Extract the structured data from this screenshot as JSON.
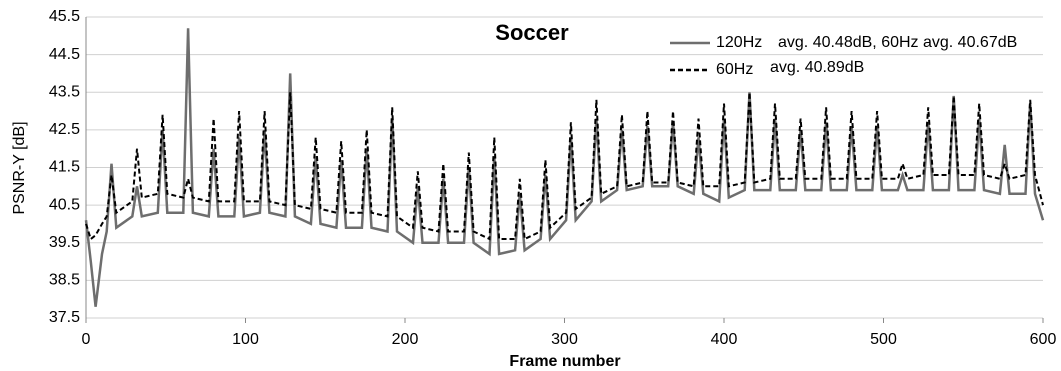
{
  "chart_data": {
    "type": "line",
    "title": "Soccer",
    "xlabel": "Frame number",
    "ylabel": "PSNR-Y [dB]",
    "annotations": [
      "avg. 40.48dB, 60Hz avg. 40.67dB",
      "avg. 40.89dB"
    ],
    "x": [
      0,
      3,
      6,
      10,
      13,
      16,
      19,
      29,
      32,
      35,
      45,
      48,
      51,
      61,
      64,
      67,
      77,
      80,
      83,
      93,
      96,
      99,
      109,
      112,
      115,
      125,
      128,
      131,
      141,
      144,
      147,
      157,
      160,
      163,
      173,
      176,
      179,
      189,
      192,
      195,
      205,
      208,
      211,
      221,
      224,
      227,
      237,
      240,
      243,
      253,
      256,
      259,
      269,
      272,
      275,
      285,
      288,
      291,
      301,
      304,
      307,
      317,
      320,
      323,
      333,
      336,
      339,
      349,
      352,
      355,
      365,
      368,
      371,
      381,
      384,
      387,
      397,
      400,
      403,
      413,
      416,
      419,
      429,
      432,
      435,
      445,
      448,
      451,
      461,
      464,
      467,
      477,
      480,
      483,
      493,
      496,
      499,
      509,
      512,
      515,
      525,
      528,
      531,
      541,
      544,
      547,
      557,
      560,
      563,
      573,
      576,
      579,
      589,
      592,
      595,
      600
    ],
    "series": [
      {
        "name": "120Hz",
        "color": "#6e6e6e",
        "dash": "solid",
        "values": [
          40.1,
          39.0,
          37.8,
          39.2,
          39.8,
          41.6,
          39.9,
          40.2,
          41.0,
          40.2,
          40.3,
          42.5,
          40.3,
          40.3,
          45.2,
          40.3,
          40.2,
          42.0,
          40.2,
          40.2,
          42.3,
          40.2,
          40.3,
          42.5,
          40.3,
          40.2,
          44.0,
          40.2,
          40.0,
          41.8,
          40.0,
          39.9,
          41.7,
          39.9,
          39.9,
          42.0,
          39.9,
          39.8,
          42.8,
          39.8,
          39.5,
          41.0,
          39.5,
          39.5,
          41.2,
          39.5,
          39.5,
          41.5,
          39.5,
          39.2,
          41.8,
          39.2,
          39.3,
          40.8,
          39.3,
          39.6,
          41.3,
          39.6,
          40.1,
          42.3,
          40.1,
          40.6,
          42.8,
          40.6,
          40.9,
          42.5,
          40.9,
          41.0,
          42.6,
          41.0,
          41.0,
          42.7,
          41.0,
          40.8,
          42.3,
          40.8,
          40.6,
          42.8,
          40.7,
          40.9,
          43.5,
          40.9,
          40.9,
          42.8,
          40.9,
          40.9,
          42.5,
          40.9,
          40.9,
          42.7,
          40.9,
          40.9,
          42.6,
          40.9,
          40.9,
          42.6,
          40.9,
          40.9,
          41.3,
          40.9,
          40.9,
          42.7,
          40.9,
          40.9,
          43.4,
          40.9,
          40.9,
          42.8,
          40.9,
          40.8,
          42.1,
          40.8,
          40.8,
          43.2,
          40.8,
          40.1
        ]
      },
      {
        "name": "60Hz",
        "color": "#000000",
        "dash": "dashed",
        "values": [
          40.0,
          39.6,
          39.7,
          40.0,
          40.2,
          41.3,
          40.3,
          40.6,
          42.0,
          40.7,
          40.8,
          42.9,
          40.8,
          40.7,
          41.2,
          40.7,
          40.6,
          42.8,
          40.6,
          40.6,
          43.0,
          40.6,
          40.6,
          43.0,
          40.6,
          40.5,
          43.5,
          40.5,
          40.4,
          42.3,
          40.4,
          40.3,
          42.2,
          40.3,
          40.3,
          42.5,
          40.3,
          40.2,
          43.1,
          40.2,
          39.9,
          41.4,
          39.9,
          39.8,
          41.6,
          39.8,
          39.8,
          41.9,
          39.8,
          39.6,
          42.3,
          39.6,
          39.6,
          41.2,
          39.6,
          39.8,
          41.7,
          39.9,
          40.3,
          42.7,
          40.4,
          40.7,
          43.3,
          40.8,
          41.0,
          42.9,
          41.0,
          41.1,
          43.0,
          41.1,
          41.1,
          43.0,
          41.1,
          41.0,
          42.8,
          41.0,
          41.0,
          43.2,
          41.0,
          41.1,
          43.5,
          41.1,
          41.2,
          43.2,
          41.2,
          41.2,
          42.8,
          41.2,
          41.2,
          43.1,
          41.2,
          41.2,
          43.0,
          41.2,
          41.2,
          43.0,
          41.2,
          41.2,
          41.6,
          41.2,
          41.3,
          43.1,
          41.3,
          41.3,
          43.4,
          41.3,
          41.3,
          43.2,
          41.3,
          41.2,
          41.6,
          41.2,
          41.3,
          43.3,
          41.3,
          40.5
        ]
      }
    ],
    "xlim": [
      0,
      600
    ],
    "xticks": [
      0,
      100,
      200,
      300,
      400,
      500,
      600
    ],
    "ylim": [
      37.5,
      45.5
    ],
    "yticks": [
      37.5,
      38.5,
      39.5,
      40.5,
      41.5,
      42.5,
      43.5,
      44.5,
      45.5
    ],
    "grid": true,
    "legend": "upper right"
  }
}
